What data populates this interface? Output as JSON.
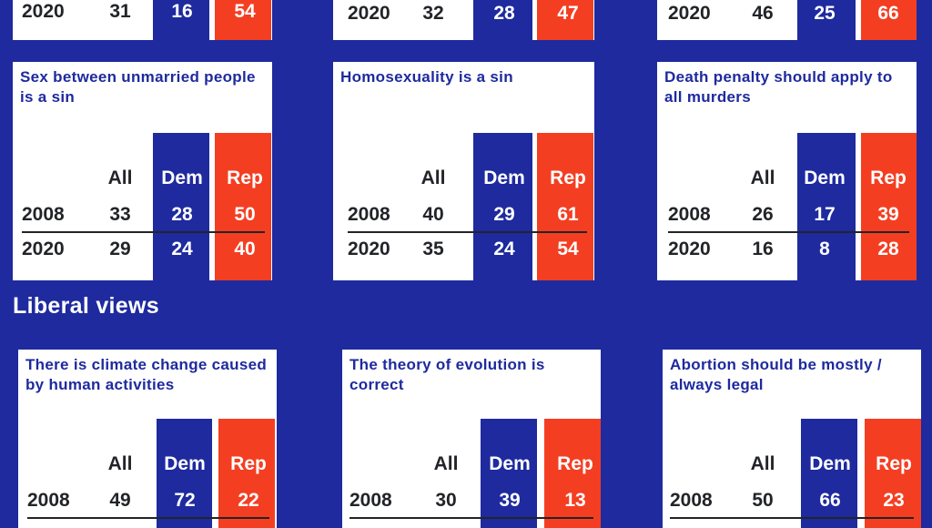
{
  "section_title": "Liberal views",
  "colors": {
    "background": "#1e2a9e",
    "dem": "#1e2a9e",
    "rep": "#f43e22",
    "card": "#ffffff"
  },
  "top_partial_rows": [
    {
      "year": "2020",
      "all": "31",
      "dem": "16",
      "rep": "54"
    },
    {
      "year": "2020",
      "all": "32",
      "dem": "28",
      "rep": "47"
    },
    {
      "year": "2020",
      "all": "46",
      "dem": "25",
      "rep": "66"
    }
  ],
  "chart_data": [
    {
      "type": "table",
      "title": "Sex between unmarried people is a sin",
      "columns": [
        "All",
        "Dem",
        "Rep"
      ],
      "rows": [
        {
          "year": "2008",
          "values": [
            "33",
            "28",
            "50"
          ]
        },
        {
          "year": "2020",
          "values": [
            "29",
            "24",
            "40"
          ]
        }
      ]
    },
    {
      "type": "table",
      "title": "Homosexuality is a sin",
      "columns": [
        "All",
        "Dem",
        "Rep"
      ],
      "rows": [
        {
          "year": "2008",
          "values": [
            "40",
            "29",
            "61"
          ]
        },
        {
          "year": "2020",
          "values": [
            "35",
            "24",
            "54"
          ]
        }
      ]
    },
    {
      "type": "table",
      "title": "Death penalty should apply to all murders",
      "columns": [
        "All",
        "Dem",
        "Rep"
      ],
      "rows": [
        {
          "year": "2008",
          "values": [
            "26",
            "17",
            "39"
          ]
        },
        {
          "year": "2020",
          "values": [
            "16",
            "8",
            "28"
          ]
        }
      ]
    },
    {
      "type": "table",
      "title": "There is climate change caused by human activities",
      "columns": [
        "All",
        "Dem",
        "Rep"
      ],
      "rows": [
        {
          "year": "2008",
          "values": [
            "49",
            "72",
            "22"
          ]
        }
      ]
    },
    {
      "type": "table",
      "title": "The theory of evolution is correct",
      "columns": [
        "All",
        "Dem",
        "Rep"
      ],
      "rows": [
        {
          "year": "2008",
          "values": [
            "30",
            "39",
            "13"
          ]
        }
      ]
    },
    {
      "type": "table",
      "title": "Abortion should be mostly / always legal",
      "columns": [
        "All",
        "Dem",
        "Rep"
      ],
      "rows": [
        {
          "year": "2008",
          "values": [
            "50",
            "66",
            "23"
          ]
        }
      ]
    }
  ]
}
